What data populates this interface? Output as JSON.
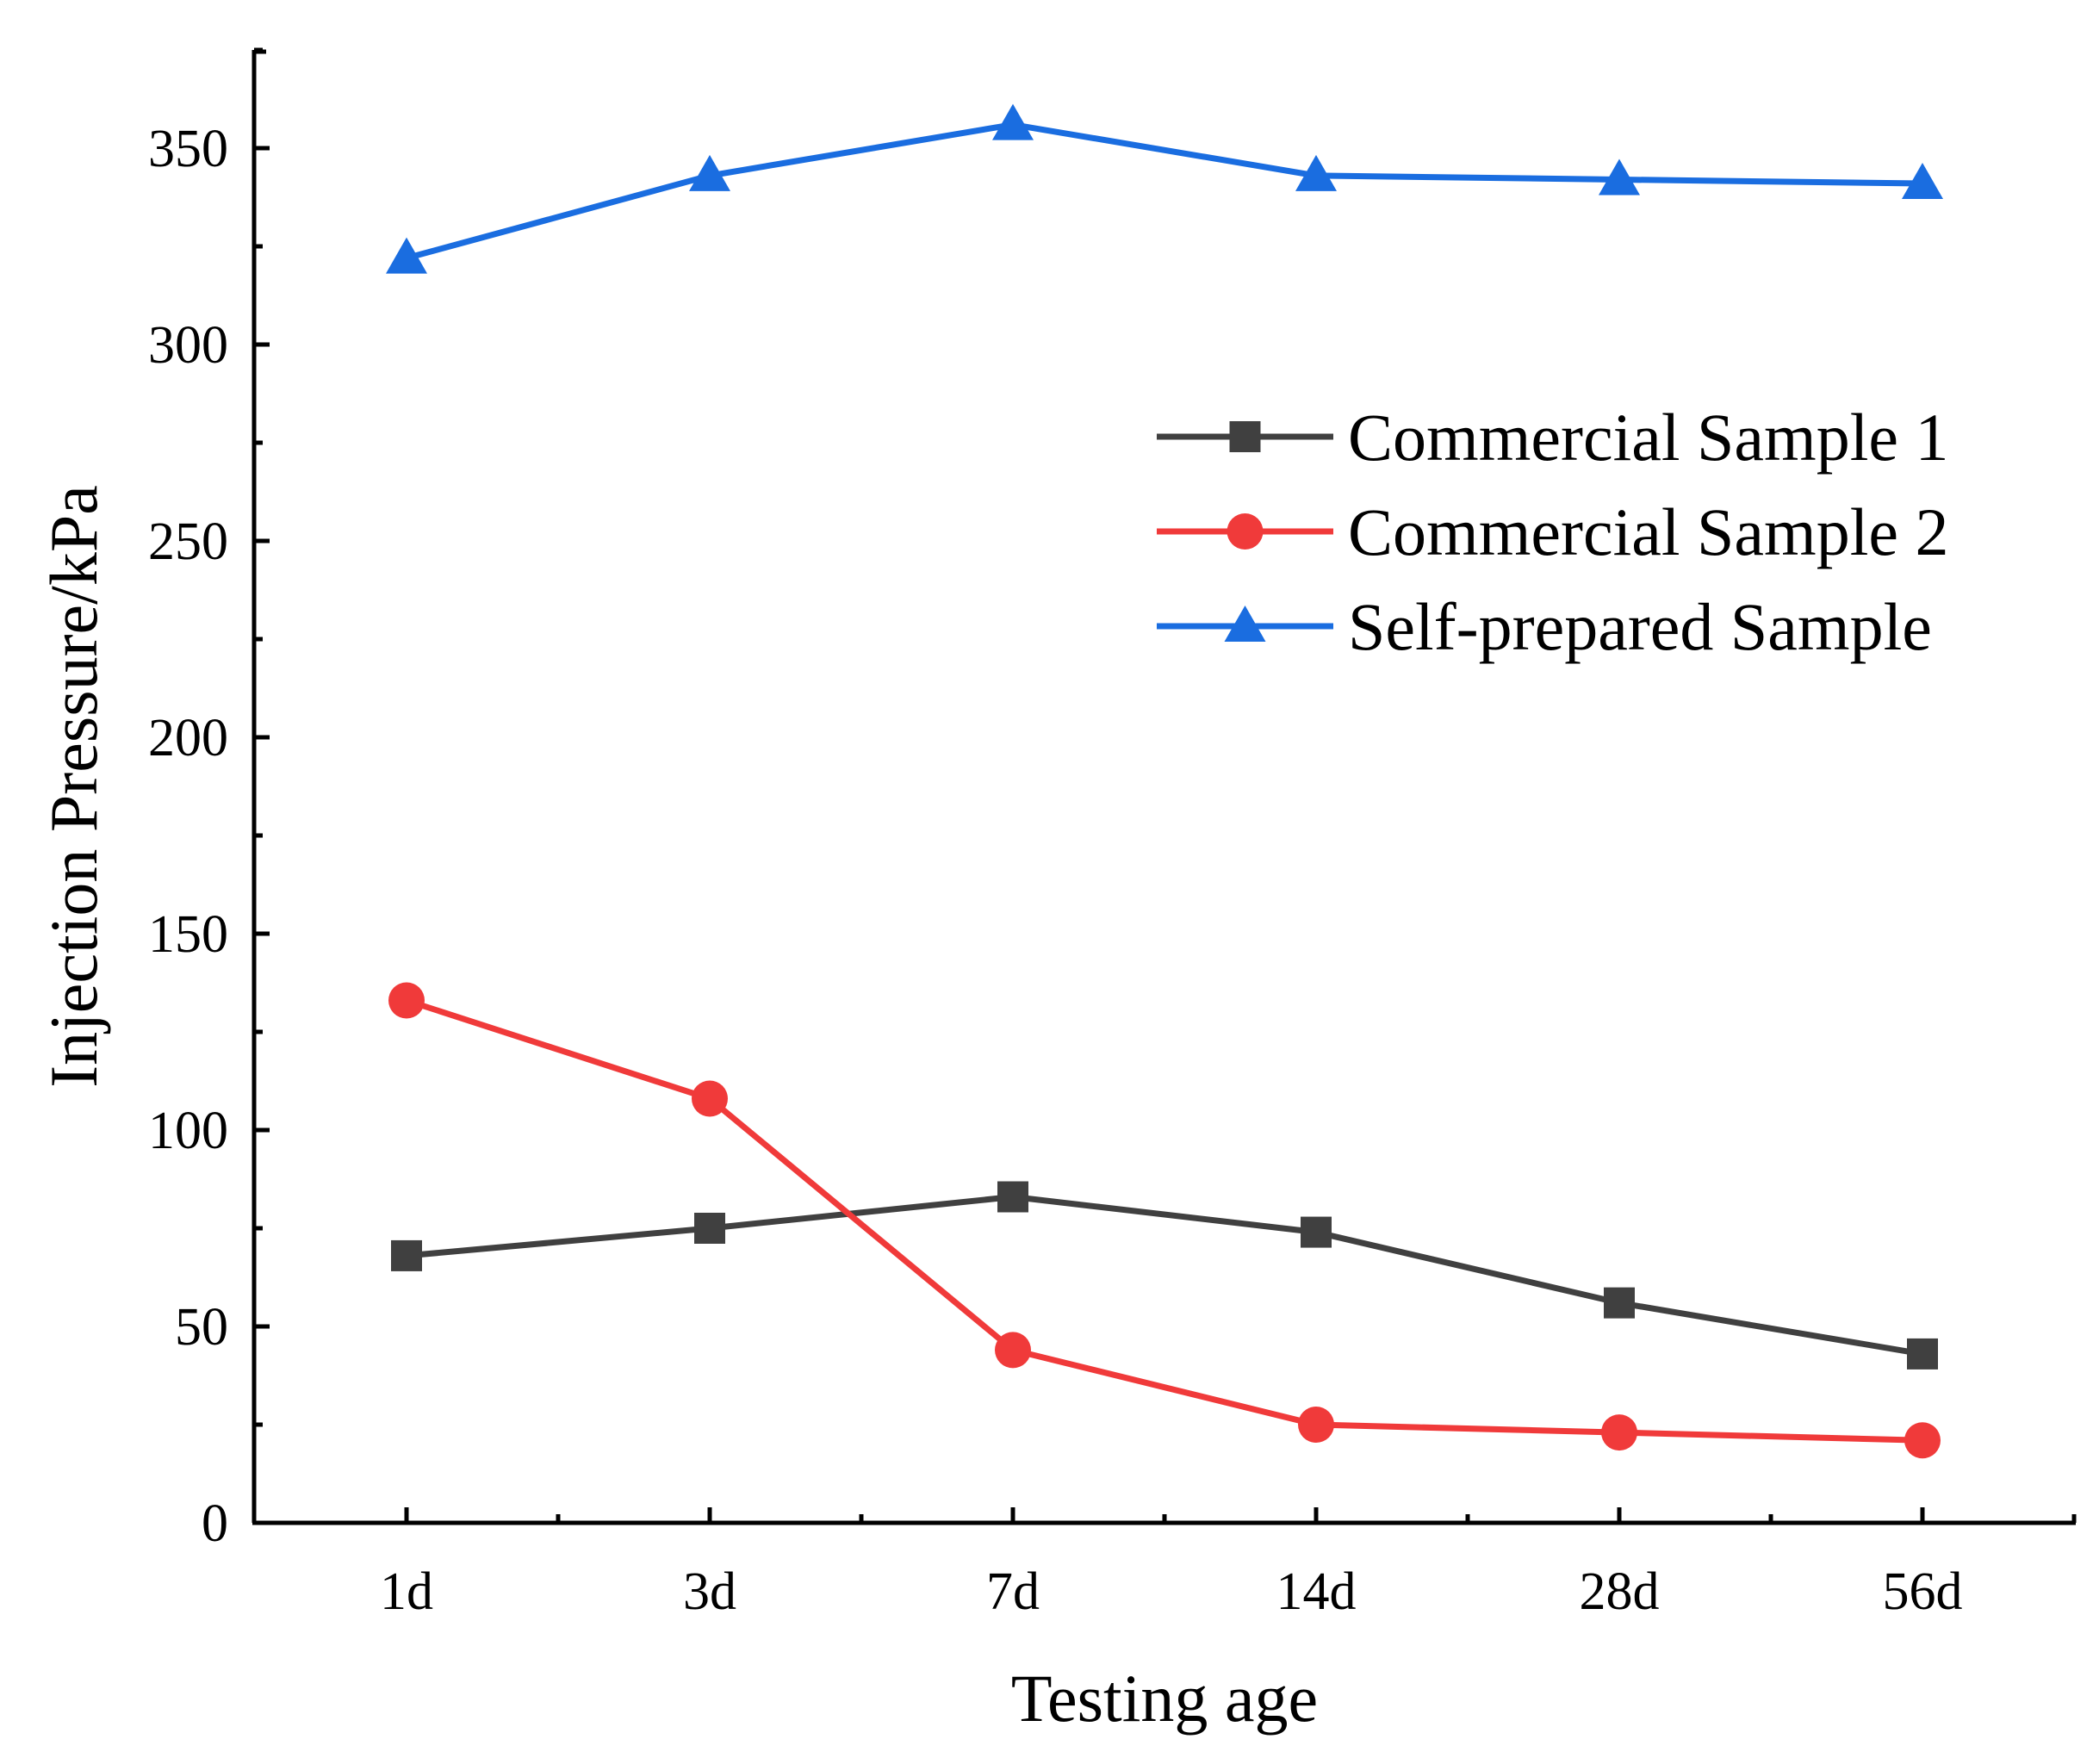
{
  "chart_data": {
    "type": "line",
    "title": "",
    "xlabel": "Testing age",
    "ylabel": "Injection Pressure/kPa",
    "categories": [
      "1d",
      "3d",
      "7d",
      "14d",
      "28d",
      "56d"
    ],
    "ylim": [
      0,
      375
    ],
    "yticks": [
      0,
      50,
      100,
      150,
      200,
      250,
      300,
      350
    ],
    "grid": false,
    "legend_position": "right",
    "series": [
      {
        "name": "Commercial Sample 1",
        "marker": "square",
        "color": "#404040",
        "values": [
          68,
          75,
          83,
          74,
          56,
          43
        ]
      },
      {
        "name": "Commercial Sample 2",
        "marker": "circle",
        "color": "#f03a3a",
        "values": [
          133,
          108,
          44,
          25,
          23,
          21
        ]
      },
      {
        "name": "Self-prepared Sample",
        "marker": "triangle",
        "color": "#1a6de0",
        "values": [
          322,
          343,
          356,
          343,
          342,
          341
        ]
      }
    ]
  }
}
